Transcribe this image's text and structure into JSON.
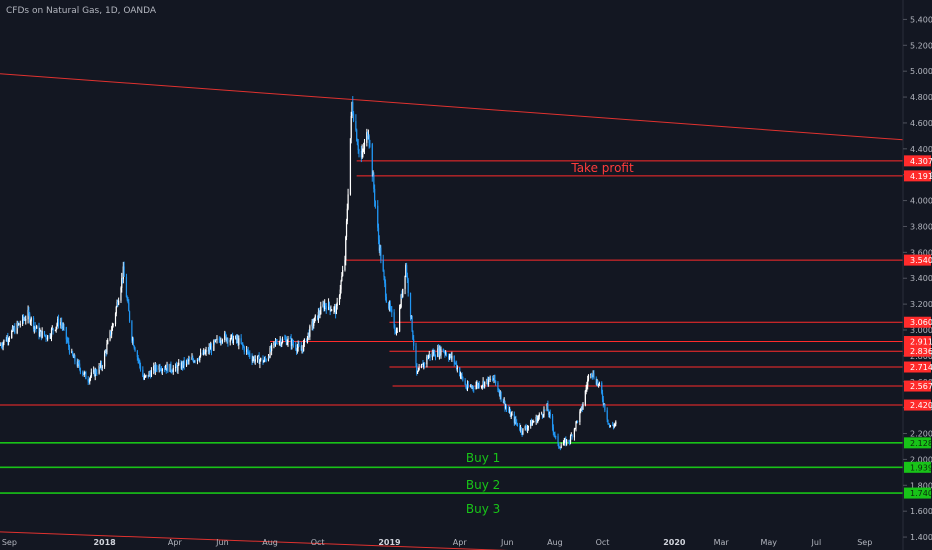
{
  "chart_data": {
    "type": "candlestick",
    "title": "CFDs on Natural Gas, 1D, OANDA",
    "y_range": [
      1.3,
      5.55
    ],
    "y_ticks": [
      "5.400",
      "5.200",
      "5.000",
      "4.800",
      "4.600",
      "4.400",
      "4.200",
      "4.000",
      "3.800",
      "3.600",
      "3.400",
      "3.200",
      "3.000",
      "2.800",
      "2.600",
      "2.400",
      "2.200",
      "2.000",
      "1.800",
      "1.600",
      "1.400"
    ],
    "x_range": [
      "2017-08-20",
      "2020-10-20"
    ],
    "x_ticks": [
      {
        "label": "Sep",
        "date": "2017-09-01"
      },
      {
        "label": "2018",
        "date": "2018-01-01",
        "major": true
      },
      {
        "label": "Apr",
        "date": "2018-04-01"
      },
      {
        "label": "Jun",
        "date": "2018-06-01"
      },
      {
        "label": "Aug",
        "date": "2018-08-01"
      },
      {
        "label": "Oct",
        "date": "2018-10-01"
      },
      {
        "label": "2019",
        "date": "2019-01-01",
        "major": true
      },
      {
        "label": "Apr",
        "date": "2019-04-01"
      },
      {
        "label": "Jun",
        "date": "2019-06-01"
      },
      {
        "label": "Aug",
        "date": "2019-08-01"
      },
      {
        "label": "Oct",
        "date": "2019-10-01"
      },
      {
        "label": "2020",
        "date": "2020-01-01",
        "major": true
      },
      {
        "label": "Mar",
        "date": "2020-03-01"
      },
      {
        "label": "May",
        "date": "2020-05-01"
      },
      {
        "label": "Jul",
        "date": "2020-07-01"
      },
      {
        "label": "Sep",
        "date": "2020-09-01"
      }
    ],
    "price_path": [
      [
        "2017-08-20",
        2.88
      ],
      [
        "2017-09-10",
        3.02
      ],
      [
        "2017-09-25",
        3.12
      ],
      [
        "2017-10-08",
        2.98
      ],
      [
        "2017-10-20",
        2.95
      ],
      [
        "2017-11-05",
        3.08
      ],
      [
        "2017-11-20",
        2.8
      ],
      [
        "2017-12-10",
        2.62
      ],
      [
        "2017-12-28",
        2.72
      ],
      [
        "2018-01-12",
        3.05
      ],
      [
        "2018-01-25",
        3.45
      ],
      [
        "2018-02-05",
        2.95
      ],
      [
        "2018-02-20",
        2.62
      ],
      [
        "2018-03-10",
        2.72
      ],
      [
        "2018-04-01",
        2.7
      ],
      [
        "2018-04-20",
        2.76
      ],
      [
        "2018-05-10",
        2.82
      ],
      [
        "2018-06-01",
        2.95
      ],
      [
        "2018-06-20",
        2.92
      ],
      [
        "2018-07-10",
        2.78
      ],
      [
        "2018-07-25",
        2.76
      ],
      [
        "2018-08-10",
        2.92
      ],
      [
        "2018-08-25",
        2.92
      ],
      [
        "2018-09-10",
        2.84
      ],
      [
        "2018-09-25",
        3.05
      ],
      [
        "2018-10-10",
        3.2
      ],
      [
        "2018-10-25",
        3.15
      ],
      [
        "2018-11-05",
        3.55
      ],
      [
        "2018-11-14",
        4.75
      ],
      [
        "2018-11-25",
        4.3
      ],
      [
        "2018-12-05",
        4.55
      ],
      [
        "2018-12-18",
        3.7
      ],
      [
        "2018-12-28",
        3.25
      ],
      [
        "2019-01-10",
        2.98
      ],
      [
        "2019-01-22",
        3.5
      ],
      [
        "2019-02-05",
        2.65
      ],
      [
        "2019-02-20",
        2.8
      ],
      [
        "2019-03-10",
        2.85
      ],
      [
        "2019-03-25",
        2.76
      ],
      [
        "2019-04-10",
        2.55
      ],
      [
        "2019-04-25",
        2.58
      ],
      [
        "2019-05-15",
        2.62
      ],
      [
        "2019-06-01",
        2.38
      ],
      [
        "2019-06-20",
        2.22
      ],
      [
        "2019-07-10",
        2.32
      ],
      [
        "2019-07-22",
        2.4
      ],
      [
        "2019-08-05",
        2.1
      ],
      [
        "2019-08-20",
        2.15
      ],
      [
        "2019-09-05",
        2.4
      ],
      [
        "2019-09-15",
        2.7
      ],
      [
        "2019-09-28",
        2.55
      ],
      [
        "2019-10-10",
        2.25
      ],
      [
        "2019-10-20",
        2.28
      ]
    ],
    "levels": [
      {
        "value": 4.307,
        "label": "4.307",
        "color": "#ff2b2b",
        "start": "2018-11-20"
      },
      {
        "value": 4.191,
        "label": "4.191",
        "color": "#ff2b2b",
        "start": "2018-11-20"
      },
      {
        "value": 3.54,
        "label": "3.540",
        "color": "#ff2b2b",
        "start": "2018-11-05"
      },
      {
        "value": 3.06,
        "label": "3.060",
        "color": "#ff2b2b",
        "start": "2019-01-01"
      },
      {
        "value": 2.911,
        "label": "2.911",
        "color": "#ff2b2b",
        "start": "2018-08-01"
      },
      {
        "value": 2.836,
        "label": "2.836",
        "color": "#ff2b2b",
        "start": "2019-01-01"
      },
      {
        "value": 2.714,
        "label": "2.714",
        "color": "#ff2b2b",
        "start": "2019-01-01"
      },
      {
        "value": 2.567,
        "label": "2.567",
        "color": "#ff2b2b",
        "start": "2019-01-05"
      },
      {
        "value": 2.42,
        "label": "2.420",
        "color": "#ff2b2b",
        "start": "2017-08-20"
      },
      {
        "value": 2.128,
        "label": "2.128",
        "color": "#18c318",
        "start": "2017-08-20"
      },
      {
        "value": 1.939,
        "label": "1.939",
        "color": "#18c318",
        "start": "2017-08-20"
      },
      {
        "value": 1.74,
        "label": "1.740",
        "color": "#18c318",
        "start": "2017-08-20"
      }
    ],
    "trendlines": [
      {
        "from": [
          "2017-08-20",
          4.98
        ],
        "to": [
          "2020-10-20",
          4.47
        ],
        "color": "#e0322f"
      },
      {
        "from": [
          "2017-08-20",
          1.44
        ],
        "to": [
          "2019-07-01",
          1.29
        ],
        "color": "#e0322f"
      }
    ],
    "annotations": [
      {
        "text": "Take profit",
        "date": "2019-10-01",
        "value": 4.22,
        "color": "#ff3b3b"
      },
      {
        "text": "Buy 1",
        "date": "2019-05-01",
        "value": 1.98,
        "color": "#18c318"
      },
      {
        "text": "Buy 2",
        "date": "2019-05-01",
        "value": 1.77,
        "color": "#18c318"
      },
      {
        "text": "Buy 3",
        "date": "2019-05-01",
        "value": 1.585,
        "color": "#18c318"
      }
    ],
    "candle_up_color": "#ffffff",
    "candle_down_color": "#2196f3",
    "grid": false
  }
}
